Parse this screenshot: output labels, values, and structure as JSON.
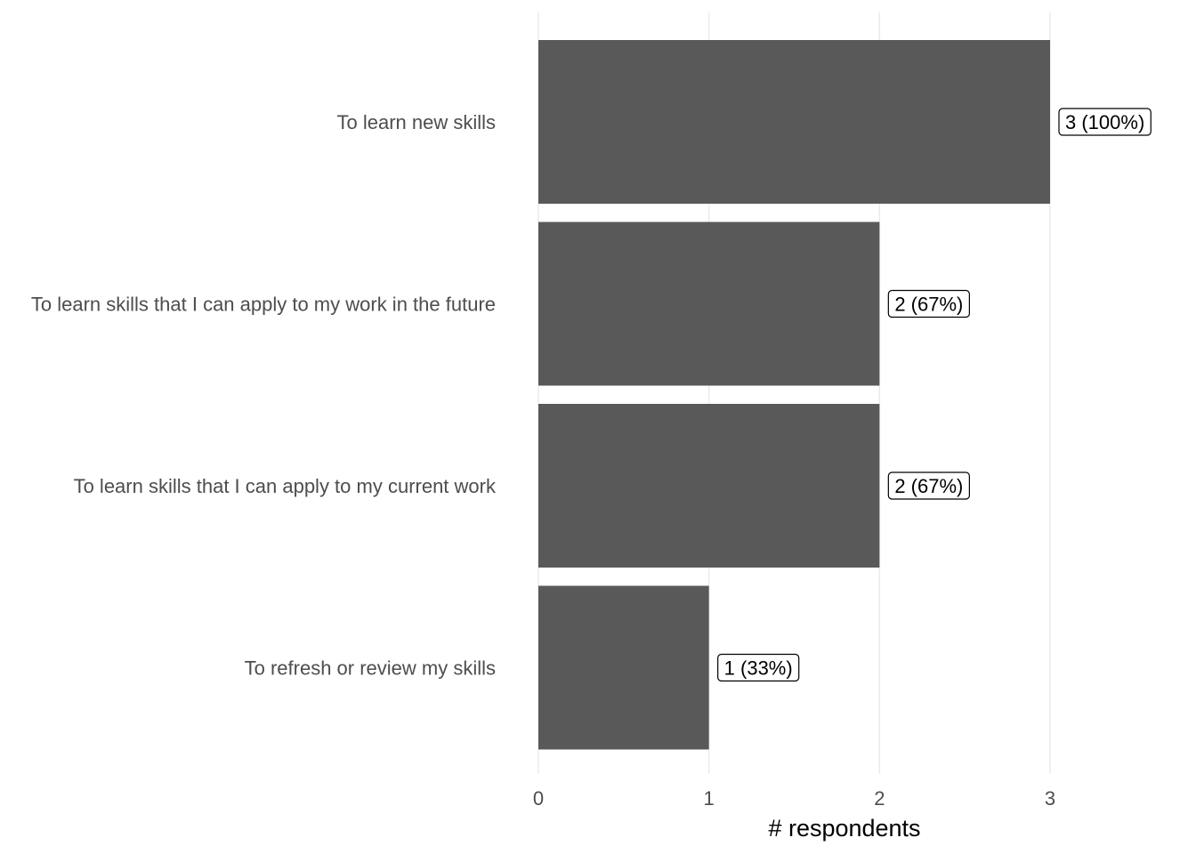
{
  "chart_data": {
    "type": "bar",
    "orientation": "horizontal",
    "categories": [
      "To learn new skills",
      "To learn skills that I can apply to my work in the future",
      "To learn skills that I can apply to my current work",
      "To refresh or review my skills"
    ],
    "values": [
      3,
      2,
      2,
      1
    ],
    "data_labels": [
      "3 (100%)",
      "2 (67%)",
      "2 (67%)",
      "1 (33%)"
    ],
    "title": "",
    "xlabel": "# respondents",
    "ylabel": "",
    "xlim": [
      0,
      3
    ],
    "x_ticks": [
      "0",
      "1",
      "2",
      "3"
    ],
    "grid": "vertical",
    "legend": "none",
    "bar_color": "#595959",
    "grid_color": "#ebebeb",
    "label_border_color": "#000000"
  }
}
